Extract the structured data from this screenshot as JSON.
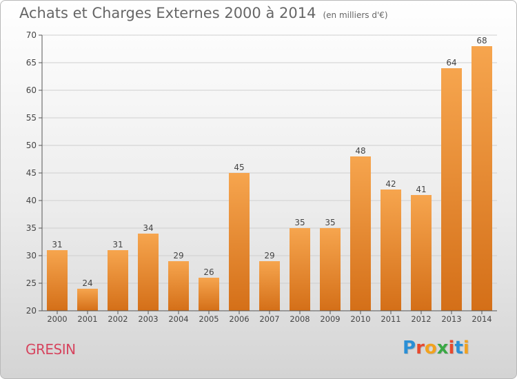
{
  "header": {
    "title": "Achats et Charges Externes 2000 à 2014",
    "unit": "(en milliers d'€)"
  },
  "footer": {
    "place": "GRESIN",
    "brand": "Proxiti",
    "brand_colors": [
      "#2a8fd6",
      "#e7492e",
      "#f2a21f",
      "#3aa845",
      "#e7492e",
      "#2a8fd6",
      "#f2a21f"
    ]
  },
  "colors": {
    "bar_top": "#f6a54e",
    "bar_bottom": "#d46f18",
    "axis": "#555555",
    "grid": "#cfcfcf",
    "text": "#444444"
  },
  "chart_data": {
    "type": "bar",
    "title": "Achats et Charges Externes 2000 à 2014",
    "subtitle": "(en milliers d'€)",
    "categories": [
      "2000",
      "2001",
      "2002",
      "2003",
      "2004",
      "2005",
      "2006",
      "2007",
      "2008",
      "2009",
      "2010",
      "2011",
      "2012",
      "2013",
      "2014"
    ],
    "values": [
      31,
      24,
      31,
      34,
      29,
      26,
      45,
      29,
      35,
      35,
      48,
      42,
      41,
      64,
      68
    ],
    "ylim": [
      20,
      70
    ],
    "yticks": [
      20,
      25,
      30,
      35,
      40,
      45,
      50,
      55,
      60,
      65,
      70
    ],
    "xlabel": "",
    "ylabel": "",
    "grid": true,
    "data_labels": true
  }
}
